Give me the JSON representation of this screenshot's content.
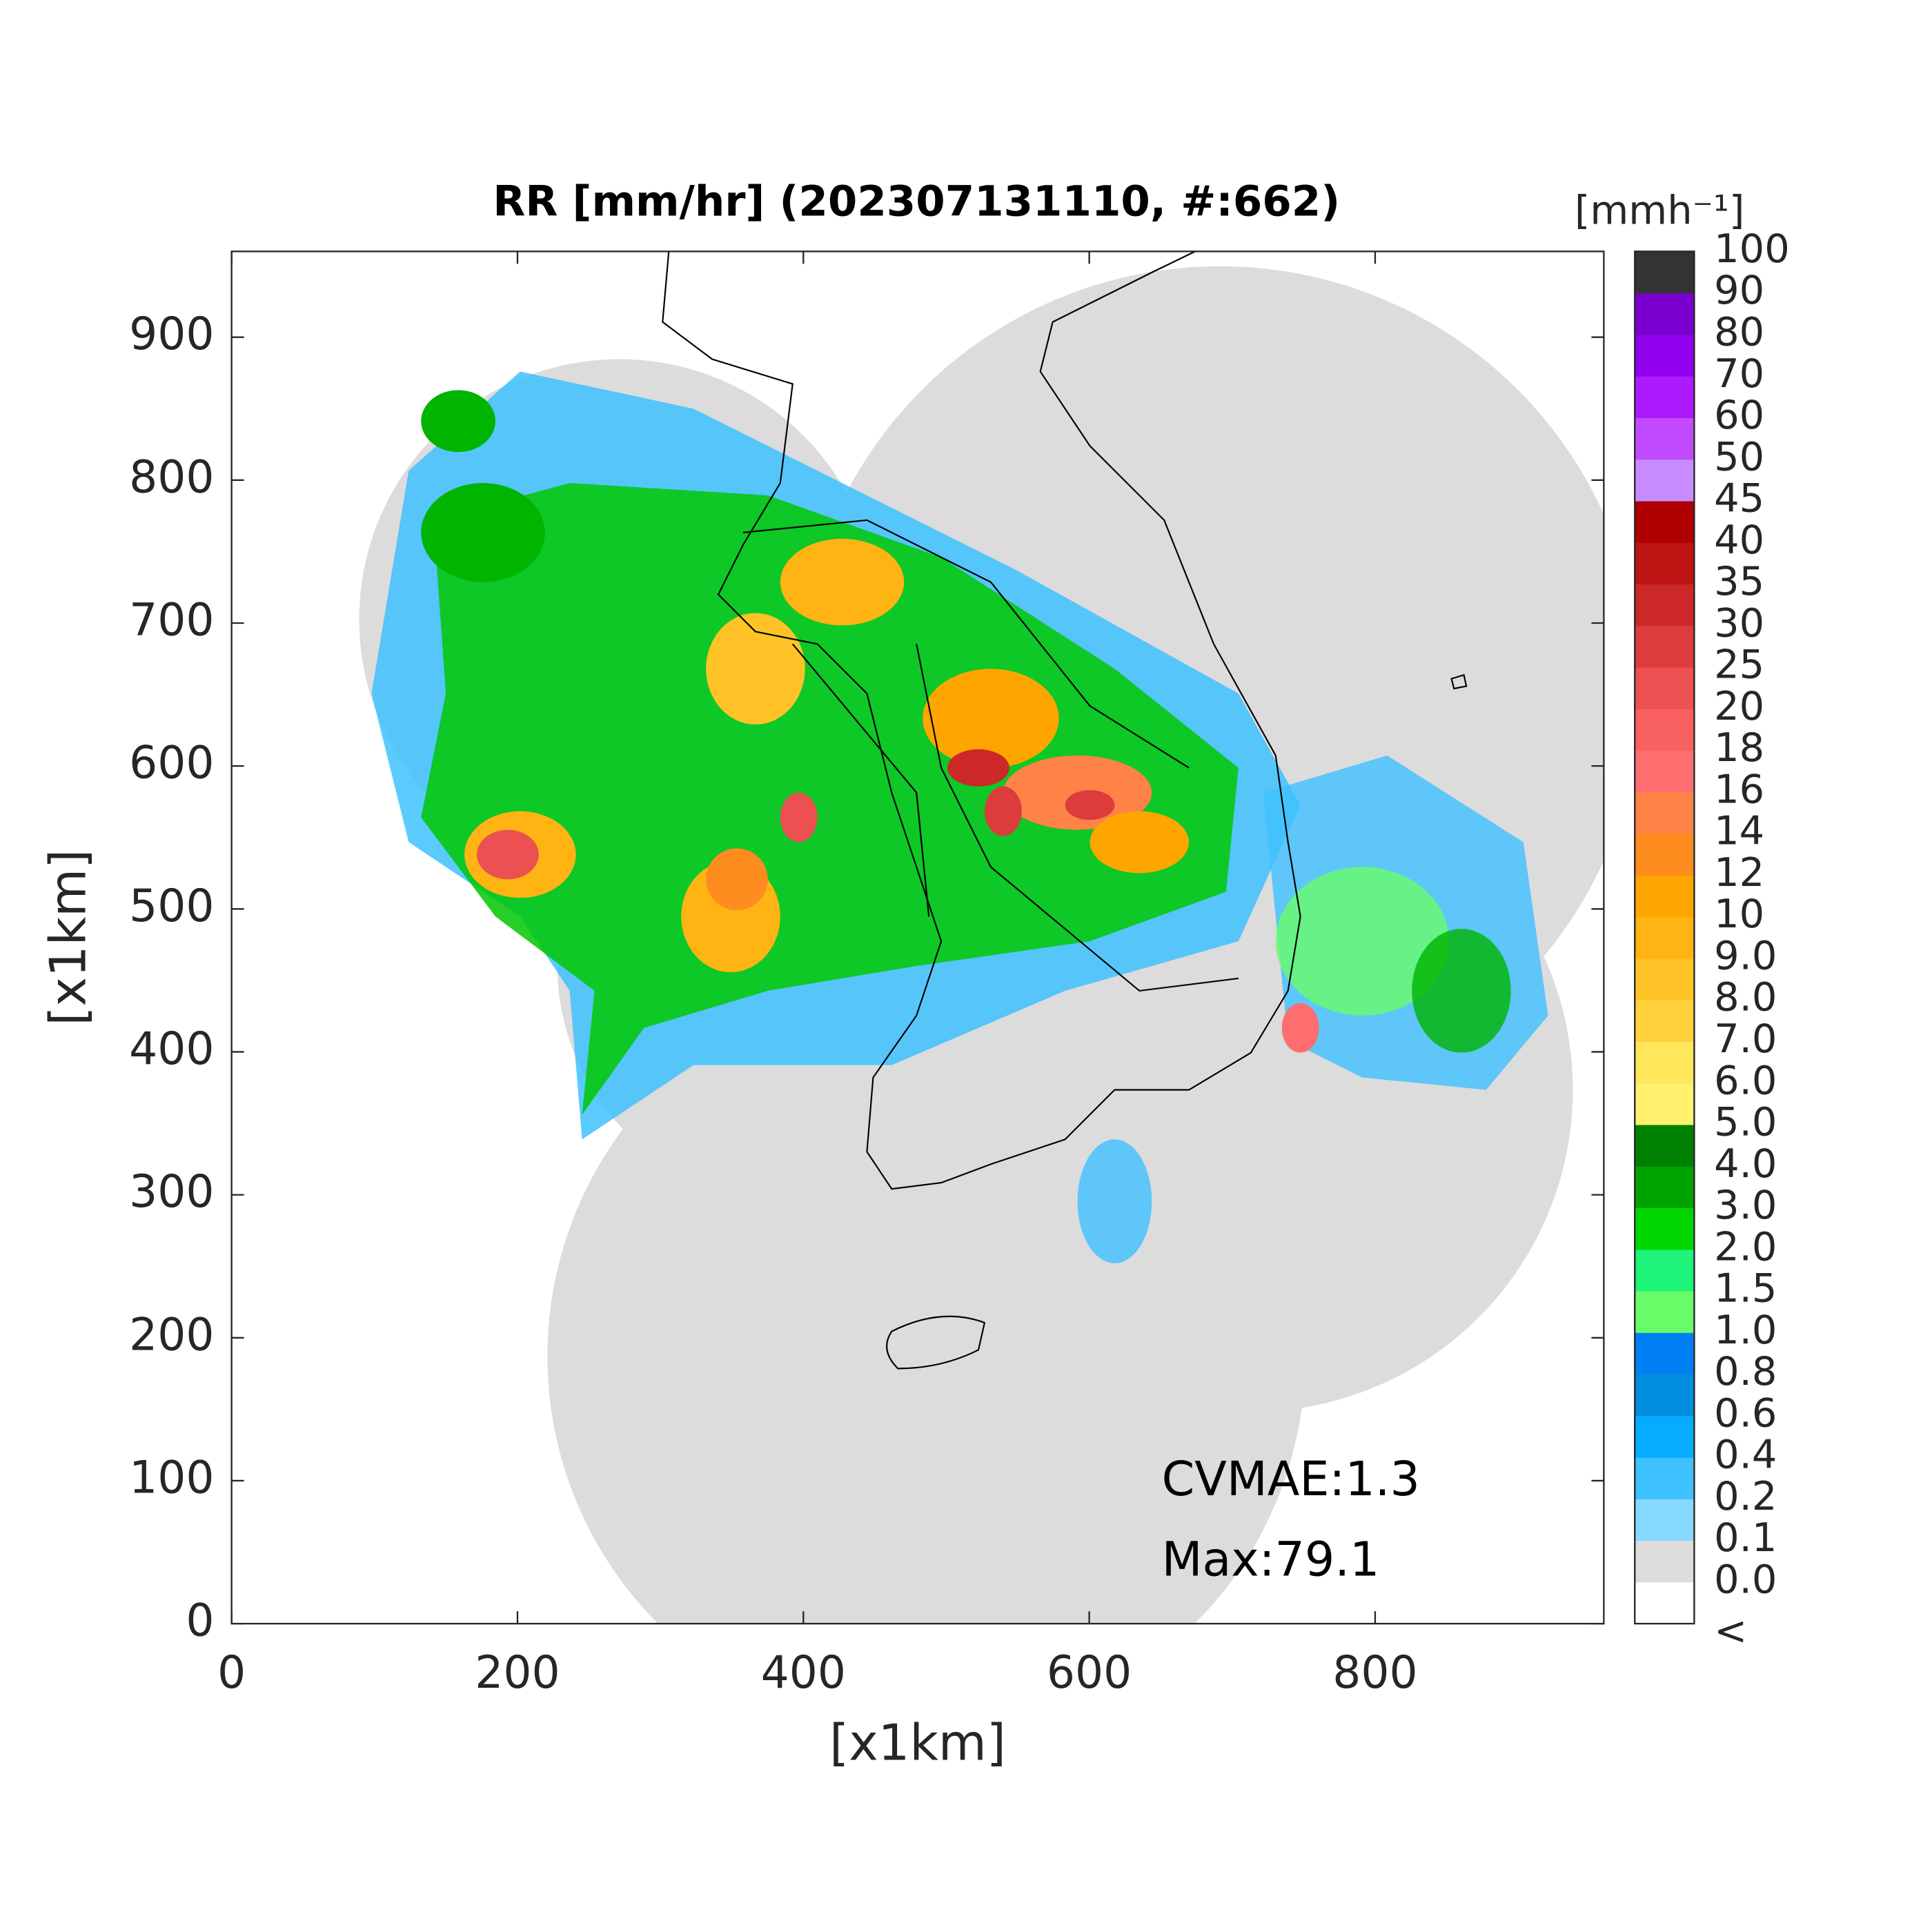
{
  "chart_data": {
    "type": "map",
    "title": "RR [mm/hr] (202307131110, #:662)",
    "x_label": "[x1km]",
    "y_label": "[x1km]",
    "xlim": [
      0,
      960
    ],
    "ylim": [
      0,
      960
    ],
    "xticks": [
      0,
      200,
      400,
      600,
      800
    ],
    "yticks": [
      0,
      100,
      200,
      300,
      400,
      500,
      600,
      700,
      800,
      900
    ],
    "annotations": [
      "CVMAE:1.3",
      "Max:79.1"
    ],
    "colorbar": {
      "title": "[mmh⁻¹]",
      "labels": [
        "<",
        "0.0",
        "0.1",
        "0.2",
        "0.4",
        "0.6",
        "0.8",
        "1.0",
        "1.5",
        "2.0",
        "3.0",
        "4.0",
        "5.0",
        "6.0",
        "7.0",
        "8.0",
        "9.0",
        "10",
        "12",
        "14",
        "16",
        "18",
        "20",
        "25",
        "30",
        "35",
        "40",
        "45",
        "50",
        "60",
        "70",
        "80",
        "90",
        "100"
      ],
      "colors": [
        "#ffffff",
        "#dcdcdc",
        "#87d9ff",
        "#3ec1ff",
        "#07abff",
        "#008dde",
        "#007ff5",
        "#69fc69",
        "#1ef37a",
        "#00d500",
        "#00a400",
        "#008000",
        "#fff06e",
        "#ffe65a",
        "#ffd23c",
        "#ffc328",
        "#ffb414",
        "#ffa500",
        "#ff8c1e",
        "#ff8246",
        "#ff6e6e",
        "#f96060",
        "#ec5050",
        "#dc3c3c",
        "#cd2828",
        "#bf1414",
        "#b00000",
        "#c88cff",
        "#c34bff",
        "#ad1aff",
        "#9000ec",
        "#7a00d0",
        "#333333"
      ]
    }
  }
}
